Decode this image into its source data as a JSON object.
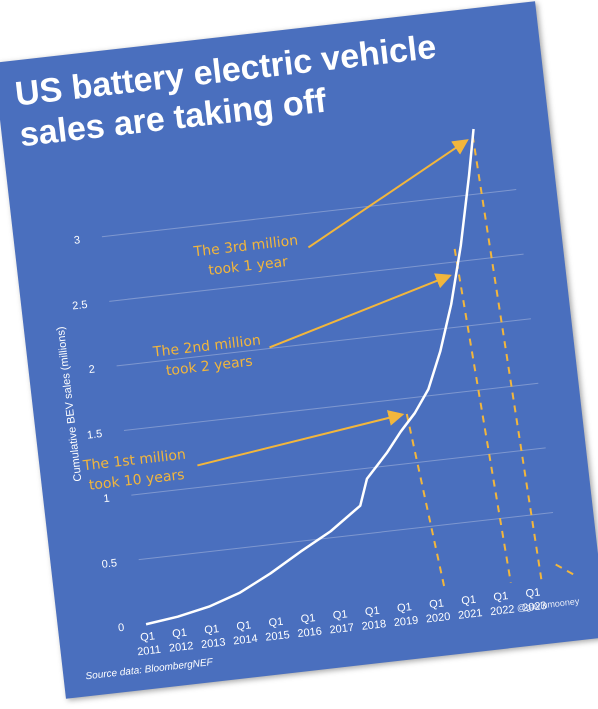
{
  "title_line1": "US battery electric vehicle",
  "title_line2": "sales are taking off",
  "source": "Source data: BloombergNEF",
  "credit": "@gavinmooney",
  "colors": {
    "background": "#4a6fbe",
    "line": "#ffffff",
    "annotation": "#f2b63c",
    "grid": "#7e97cf"
  },
  "chart_data": {
    "type": "line",
    "title": "US battery electric vehicle sales are taking off",
    "ylabel": "Cumulative BEV sales (millions)",
    "xlabel": "",
    "ylim": [
      0,
      3.5
    ],
    "yticks": [
      "0",
      "0.5",
      "1",
      "1.5",
      "2",
      "2.5",
      "3"
    ],
    "xticks": [
      {
        "q": "Q1",
        "year": "2011"
      },
      {
        "q": "Q1",
        "year": "2012"
      },
      {
        "q": "Q1",
        "year": "2013"
      },
      {
        "q": "Q1",
        "year": "2014"
      },
      {
        "q": "Q1",
        "year": "2015"
      },
      {
        "q": "Q1",
        "year": "2016"
      },
      {
        "q": "Q1",
        "year": "2017"
      },
      {
        "q": "Q1",
        "year": "2018"
      },
      {
        "q": "Q1",
        "year": "2019"
      },
      {
        "q": "Q1",
        "year": "2020"
      },
      {
        "q": "Q1",
        "year": "2021"
      },
      {
        "q": "Q1",
        "year": "2022"
      },
      {
        "q": "Q1",
        "year": "2023"
      }
    ],
    "grid": true,
    "series": [
      {
        "x": [
          "2011",
          "2012",
          "2013",
          "2014",
          "2015",
          "2016",
          "2017",
          "2018",
          "2018.3",
          "2019",
          "2019.5",
          "2020",
          "2020.5",
          "2021",
          "2021.5",
          "2022",
          "2022.5",
          "2022.8"
        ],
        "values": [
          0.0,
          0.03,
          0.08,
          0.16,
          0.28,
          0.42,
          0.55,
          0.72,
          0.92,
          1.1,
          1.25,
          1.38,
          1.55,
          1.83,
          2.18,
          2.62,
          3.15,
          3.5
        ]
      }
    ],
    "annotations": [
      {
        "line1": "The 1st million",
        "line2": "took 10 years",
        "at_x": "2019.8",
        "at_y": 1.38,
        "marker_x": "2019.75"
      },
      {
        "line1": "The 2nd million",
        "line2": "took 2 years",
        "at_x": "2021.75",
        "at_y": 2.4,
        "marker_x": "2021.8"
      },
      {
        "line1": "The 3rd million",
        "line2": "took 1 year",
        "at_x": "2022.75",
        "at_y": 3.42,
        "marker_x": "2022.75"
      }
    ],
    "reference_x": [
      "2019.75",
      "2021.8",
      "2022.75",
      "2023.8"
    ]
  }
}
